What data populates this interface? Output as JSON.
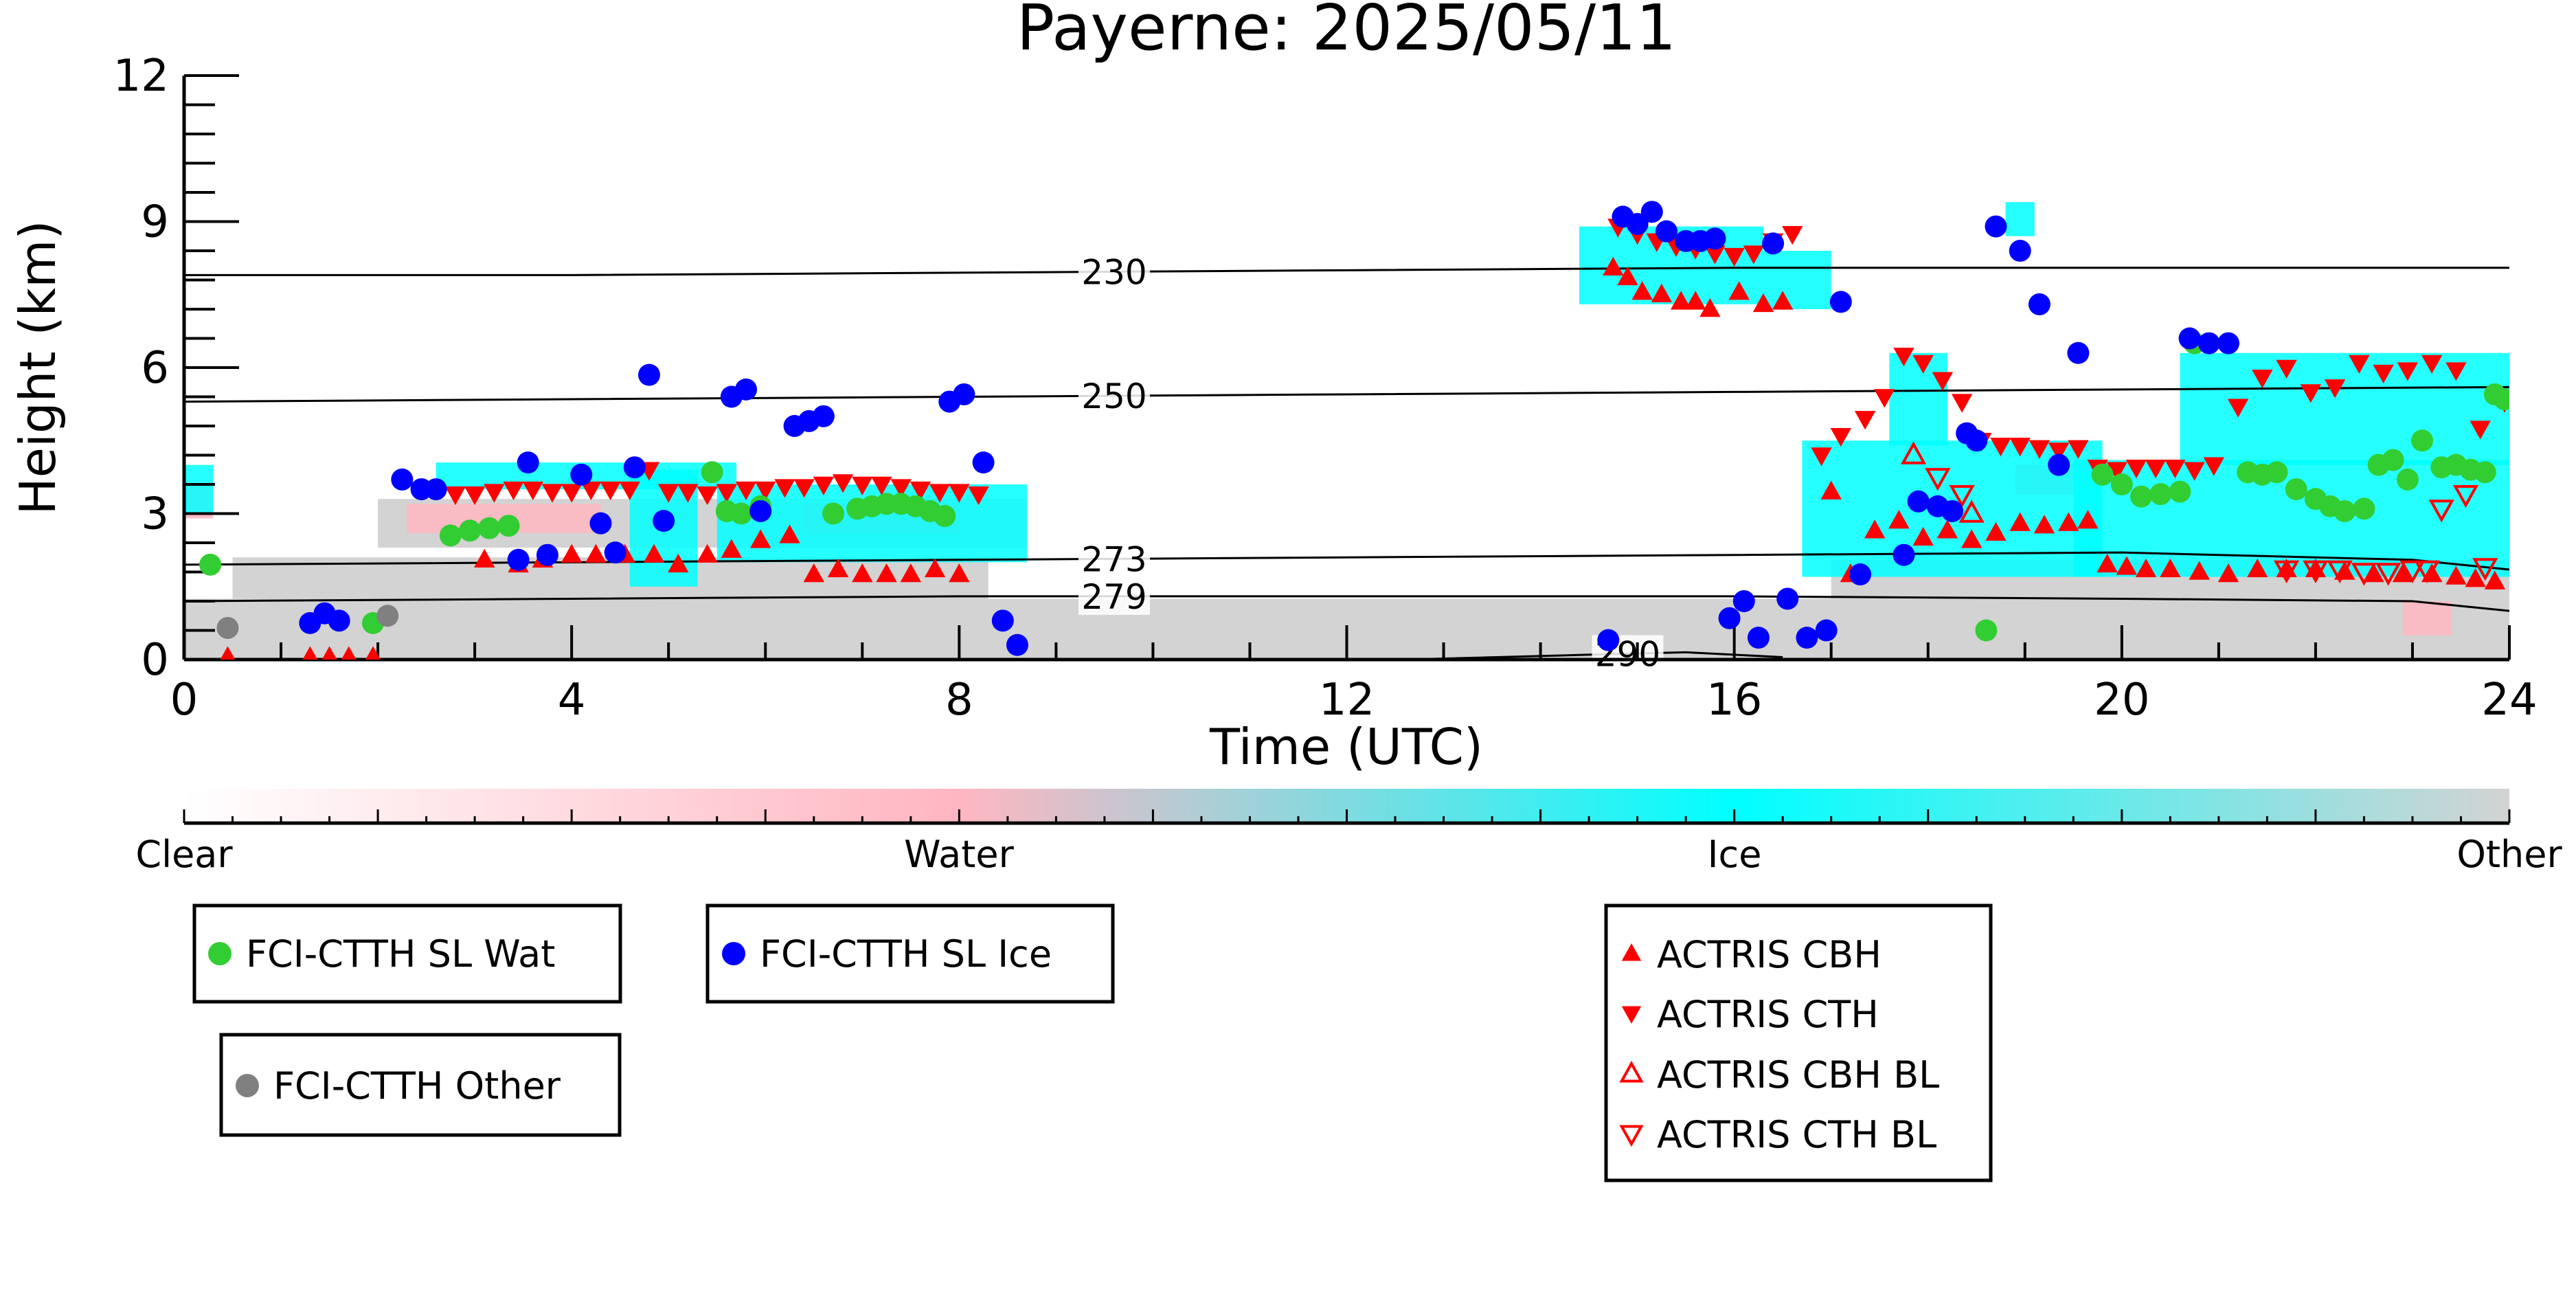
{
  "chart_data": {
    "type": "scatter",
    "title": "Payerne: 2025/05/11",
    "xlabel": "Time (UTC)",
    "ylabel": "Height (km)",
    "xlim": [
      0,
      24
    ],
    "ylim": [
      0,
      12
    ],
    "x_ticks": [
      0,
      4,
      8,
      12,
      16,
      20,
      24
    ],
    "y_ticks": [
      0,
      3,
      6,
      9,
      12
    ],
    "grid": false,
    "colorbar": {
      "labels": [
        "Clear",
        "Water",
        "Ice",
        "Other"
      ],
      "colors": [
        "#ffffff",
        "#ffb6c1",
        "#00ffff",
        "#d3d3d3"
      ]
    },
    "isotherms": [
      {
        "label": "230",
        "label_x": 9.6,
        "x": [
          0,
          4,
          8,
          12,
          16,
          20,
          24
        ],
        "y": [
          7.9,
          7.9,
          7.95,
          8.0,
          8.05,
          8.05,
          8.05
        ]
      },
      {
        "label": "250",
        "label_x": 9.6,
        "x": [
          0,
          4,
          8,
          12,
          16,
          20,
          24
        ],
        "y": [
          5.3,
          5.35,
          5.4,
          5.45,
          5.5,
          5.55,
          5.6
        ]
      },
      {
        "label": "273",
        "label_x": 9.6,
        "x": [
          0,
          4,
          8,
          12,
          16,
          20,
          23,
          24
        ],
        "y": [
          1.95,
          2.0,
          2.05,
          2.1,
          2.15,
          2.2,
          2.05,
          1.85
        ]
      },
      {
        "label": "279",
        "label_x": 9.6,
        "x": [
          0,
          4,
          8,
          12,
          16,
          20,
          23,
          24
        ],
        "y": [
          1.2,
          1.25,
          1.3,
          1.3,
          1.3,
          1.25,
          1.2,
          1.0
        ]
      },
      {
        "label": "290",
        "label_x": 14.9,
        "x": [
          12.6,
          14.5,
          15.5,
          16.5
        ],
        "y": [
          0.0,
          0.1,
          0.15,
          0.05
        ]
      }
    ],
    "series": [
      {
        "name": "FCI-CTTH SL Wat",
        "marker": "circle",
        "color": "#32cd32",
        "x": [
          0.27,
          1.95,
          2.75,
          2.95,
          3.15,
          3.35,
          5.45,
          5.6,
          5.75,
          5.95,
          6.7,
          6.95,
          7.1,
          7.25,
          7.4,
          7.55,
          7.7,
          7.85,
          18.6,
          19.8,
          20.0,
          20.2,
          20.4,
          20.6,
          20.75,
          21.3,
          21.45,
          21.6,
          21.8,
          22.0,
          22.15,
          22.3,
          22.5,
          22.65,
          22.8,
          22.95,
          23.1,
          23.3,
          23.45,
          23.6,
          23.75,
          23.85,
          23.95
        ],
        "y": [
          1.95,
          0.75,
          2.55,
          2.65,
          2.7,
          2.75,
          3.85,
          3.05,
          3.0,
          3.15,
          3.0,
          3.1,
          3.15,
          3.2,
          3.2,
          3.15,
          3.05,
          2.95,
          0.6,
          3.8,
          3.6,
          3.35,
          3.4,
          3.45,
          6.5,
          3.85,
          3.8,
          3.85,
          3.5,
          3.3,
          3.15,
          3.05,
          3.1,
          4.0,
          4.1,
          3.7,
          4.5,
          3.95,
          4.0,
          3.9,
          3.85,
          5.45,
          5.35
        ]
      },
      {
        "name": "FCI-CTTH SL Ice",
        "marker": "circle",
        "color": "#0000ff",
        "x": [
          1.3,
          1.45,
          1.6,
          2.25,
          2.45,
          2.6,
          3.45,
          3.55,
          3.75,
          4.1,
          4.3,
          4.45,
          4.65,
          4.8,
          4.95,
          5.65,
          5.8,
          5.95,
          6.3,
          6.45,
          6.6,
          7.9,
          8.05,
          8.25,
          8.45,
          8.6,
          14.7,
          14.85,
          15.0,
          15.15,
          15.3,
          15.5,
          15.65,
          15.8,
          15.95,
          16.1,
          16.25,
          16.4,
          16.55,
          16.75,
          16.95,
          17.1,
          17.3,
          17.75,
          17.9,
          18.1,
          18.25,
          18.4,
          18.5,
          18.7,
          18.95,
          19.15,
          19.35,
          19.55,
          20.7,
          20.9,
          21.1
        ],
        "y": [
          0.75,
          0.95,
          0.8,
          3.7,
          3.5,
          3.5,
          2.05,
          4.05,
          2.15,
          3.8,
          2.8,
          2.2,
          3.95,
          5.85,
          2.85,
          5.4,
          5.55,
          3.05,
          4.8,
          4.9,
          5.0,
          5.3,
          5.45,
          4.05,
          0.8,
          0.3,
          0.4,
          9.1,
          8.95,
          9.2,
          8.8,
          8.6,
          8.6,
          8.65,
          0.85,
          1.2,
          0.45,
          8.55,
          1.25,
          0.45,
          0.6,
          7.35,
          1.75,
          2.15,
          3.25,
          3.15,
          3.05,
          4.65,
          4.5,
          8.9,
          8.4,
          7.3,
          4.0,
          6.3,
          6.6,
          6.5,
          6.5
        ]
      },
      {
        "name": "FCI-CTTH Other",
        "marker": "circle",
        "color": "#808080",
        "x": [
          0.45,
          2.1
        ],
        "y": [
          0.65,
          0.9
        ]
      },
      {
        "name": "ACTRIS CBH",
        "marker": "triangle-up",
        "color": "#ff0000",
        "filled": true,
        "x": [
          0.45,
          1.3,
          1.5,
          1.7,
          1.95,
          3.1,
          3.45,
          3.7,
          4.0,
          4.25,
          4.55,
          4.85,
          5.1,
          5.4,
          5.65,
          5.95,
          6.25,
          6.5,
          6.75,
          7.0,
          7.25,
          7.5,
          7.75,
          8.0,
          14.75,
          14.9,
          15.05,
          15.25,
          15.45,
          15.6,
          15.75,
          16.05,
          16.3,
          16.5,
          17.0,
          17.2,
          17.45,
          17.7,
          17.95,
          18.2,
          18.45,
          18.7,
          18.95,
          19.2,
          19.45,
          19.65,
          19.85,
          20.05,
          20.25,
          20.5,
          20.8,
          21.1,
          21.4,
          21.7,
          22.0,
          22.3,
          22.6,
          22.9,
          23.2,
          23.45,
          23.65,
          23.85
        ],
        "y": [
          0.05,
          0.05,
          0.05,
          0.05,
          0.05,
          2.05,
          1.95,
          2.05,
          2.15,
          2.15,
          2.15,
          2.15,
          1.95,
          2.15,
          2.25,
          2.45,
          2.55,
          1.75,
          1.85,
          1.75,
          1.75,
          1.75,
          1.85,
          1.75,
          8.05,
          7.85,
          7.55,
          7.5,
          7.35,
          7.35,
          7.2,
          7.55,
          7.3,
          7.35,
          3.45,
          1.75,
          2.65,
          2.85,
          2.5,
          2.65,
          2.45,
          2.6,
          2.8,
          2.75,
          2.8,
          2.85,
          1.95,
          1.9,
          1.85,
          1.85,
          1.8,
          1.75,
          1.85,
          1.85,
          1.85,
          1.8,
          1.75,
          1.75,
          1.75,
          1.7,
          1.65,
          1.6
        ]
      },
      {
        "name": "ACTRIS CTH",
        "marker": "triangle-down",
        "color": "#ff0000",
        "filled": true,
        "x": [
          2.8,
          3.0,
          3.2,
          3.4,
          3.6,
          3.8,
          4.0,
          4.2,
          4.4,
          4.6,
          4.8,
          5.0,
          5.2,
          5.4,
          5.6,
          5.8,
          6.0,
          6.2,
          6.4,
          6.6,
          6.8,
          7.0,
          7.2,
          7.4,
          7.6,
          7.8,
          8.0,
          8.2,
          14.8,
          15.0,
          15.2,
          15.4,
          15.6,
          15.8,
          16.0,
          16.2,
          16.4,
          16.6,
          16.9,
          17.1,
          17.35,
          17.55,
          17.75,
          17.95,
          18.15,
          18.35,
          18.55,
          18.75,
          18.95,
          19.15,
          19.35,
          19.55,
          19.75,
          19.95,
          20.15,
          20.35,
          20.55,
          20.75,
          20.95,
          21.2,
          21.45,
          21.7,
          21.95,
          22.2,
          22.45,
          22.7,
          22.95,
          23.2,
          23.45,
          23.7,
          23.95
        ],
        "y": [
          3.4,
          3.4,
          3.45,
          3.5,
          3.5,
          3.45,
          3.45,
          3.5,
          3.5,
          3.5,
          3.9,
          3.45,
          3.45,
          3.4,
          3.45,
          3.5,
          3.5,
          3.55,
          3.55,
          3.6,
          3.65,
          3.6,
          3.6,
          3.55,
          3.5,
          3.45,
          3.45,
          3.4,
          8.9,
          8.75,
          8.6,
          8.5,
          8.45,
          8.35,
          8.3,
          8.35,
          8.6,
          8.75,
          4.2,
          4.6,
          4.95,
          5.4,
          6.25,
          6.1,
          5.75,
          5.3,
          4.5,
          4.4,
          4.4,
          4.35,
          4.3,
          4.35,
          3.95,
          3.9,
          3.95,
          3.95,
          3.95,
          3.9,
          4.0,
          5.2,
          5.8,
          6.0,
          5.5,
          5.6,
          6.1,
          5.9,
          5.95,
          6.1,
          5.95,
          4.75,
          5.3
        ]
      },
      {
        "name": "ACTRIS CBH BL",
        "marker": "triangle-up",
        "color": "#ff0000",
        "filled": false,
        "x": [
          17.85,
          18.45
        ],
        "y": [
          4.2,
          3.0
        ]
      },
      {
        "name": "ACTRIS CTH BL",
        "marker": "triangle-down",
        "color": "#ff0000",
        "filled": false,
        "x": [
          18.1,
          18.35,
          21.7,
          22.0,
          22.25,
          22.5,
          22.75,
          23.0,
          23.15,
          23.3,
          23.55,
          23.75
        ],
        "y": [
          3.75,
          3.4,
          1.85,
          1.85,
          1.85,
          1.8,
          1.8,
          1.85,
          1.85,
          3.1,
          3.4,
          1.9
        ]
      }
    ]
  }
}
